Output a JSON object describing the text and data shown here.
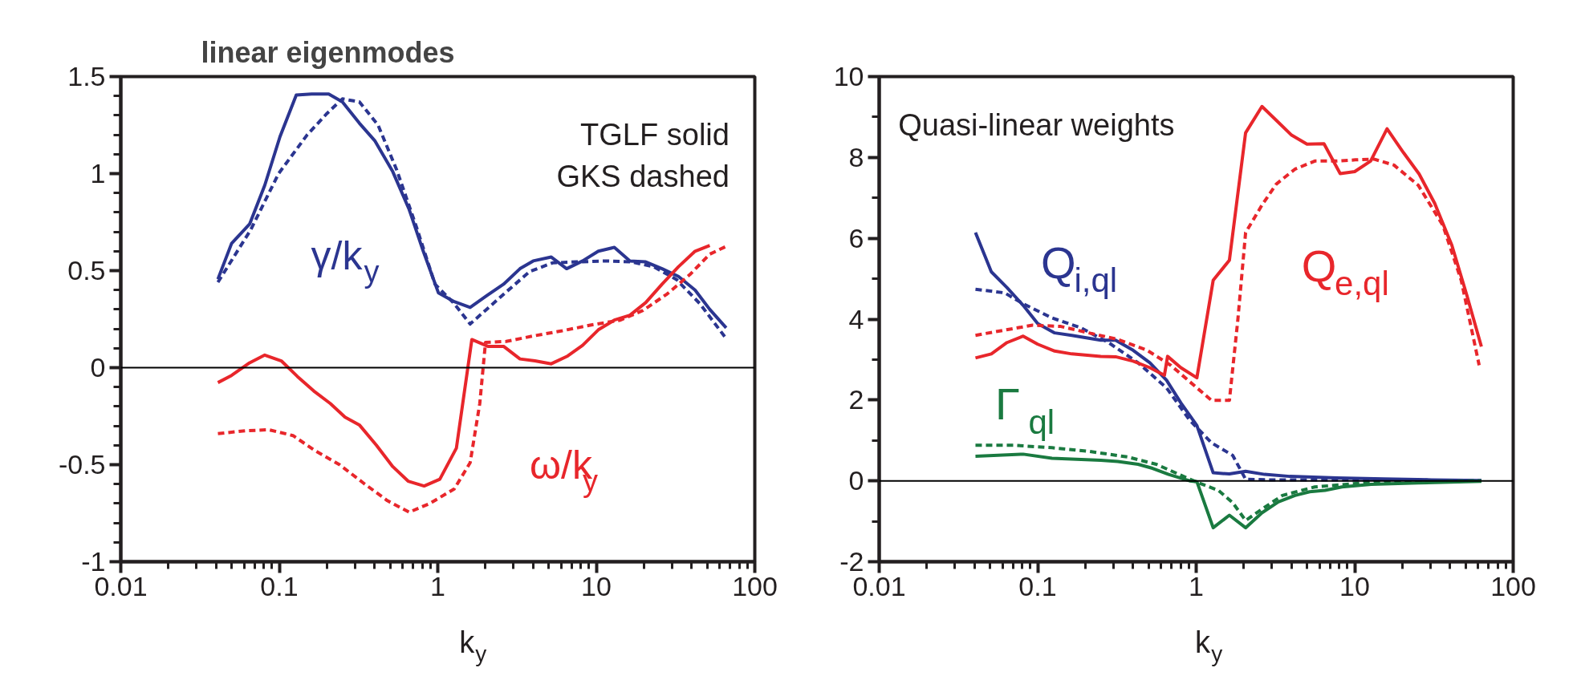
{
  "chart_data": [
    {
      "type": "line",
      "title": "linear eigenmodes",
      "xlabel": "k$_{y}$",
      "log": "x",
      "grid": false,
      "xlim": [
        0.01,
        100
      ],
      "ylim": [
        -1,
        1.5
      ],
      "xticks": [
        0.01,
        {
          "value": 0.02,
          "label": null
        },
        {
          "value": 0.03,
          "label": null
        },
        {
          "value": 0.04,
          "label": null
        },
        {
          "value": 0.05,
          "label": null
        },
        {
          "value": 0.06,
          "label": null
        },
        {
          "value": 0.07,
          "label": null
        },
        {
          "value": 0.08,
          "label": null
        },
        {
          "value": 0.09,
          "label": null
        },
        0.1,
        {
          "value": 0.2,
          "label": null
        },
        {
          "value": 0.3,
          "label": null
        },
        {
          "value": 0.4,
          "label": null
        },
        {
          "value": 0.5,
          "label": null
        },
        {
          "value": 0.6,
          "label": null
        },
        {
          "value": 0.7,
          "label": null
        },
        {
          "value": 0.8,
          "label": null
        },
        {
          "value": 0.9,
          "label": null
        },
        1,
        {
          "value": 2,
          "label": null
        },
        {
          "value": 3,
          "label": null
        },
        {
          "value": 4,
          "label": null
        },
        {
          "value": 5,
          "label": null
        },
        {
          "value": 6,
          "label": null
        },
        {
          "value": 7,
          "label": null
        },
        {
          "value": 8,
          "label": null
        },
        {
          "value": 9,
          "label": null
        },
        10,
        {
          "value": 20,
          "label": null
        },
        {
          "value": 30,
          "label": null
        },
        {
          "value": 40,
          "label": null
        },
        {
          "value": 50,
          "label": null
        },
        {
          "value": 60,
          "label": null
        },
        {
          "value": 70,
          "label": null
        },
        {
          "value": 80,
          "label": null
        },
        {
          "value": 90,
          "label": null
        },
        100
      ],
      "yticks": [
        -1,
        {
          "value": -0.9,
          "label": null
        },
        {
          "value": -0.8,
          "label": null
        },
        {
          "value": -0.7,
          "label": null
        },
        {
          "value": -0.6,
          "label": null
        },
        -0.5,
        {
          "value": -0.4,
          "label": null
        },
        {
          "value": -0.3,
          "label": null
        },
        {
          "value": -0.2,
          "label": null
        },
        {
          "value": -0.1,
          "label": null
        },
        0,
        {
          "value": 0.1,
          "label": null
        },
        {
          "value": 0.2,
          "label": null
        },
        {
          "value": 0.3,
          "label": null
        },
        {
          "value": 0.4,
          "label": null
        },
        0.5,
        {
          "value": 0.6,
          "label": null
        },
        {
          "value": 0.7,
          "label": null
        },
        {
          "value": 0.8,
          "label": null
        },
        {
          "value": 0.9,
          "label": null
        },
        1,
        {
          "value": 1.1,
          "label": null
        },
        {
          "value": 1.2,
          "label": null
        },
        {
          "value": 1.3,
          "label": null
        },
        {
          "value": 1.4,
          "label": null
        },
        1.5
      ],
      "ref_lines": [
        {
          "axis": "y",
          "value": 0,
          "color": "#000000"
        }
      ],
      "annotations": [
        "TGLF solid\nGKS dashed",
        "γ/k$_{y}$",
        "ω/k$_{y}$"
      ],
      "series": [
        {
          "color": "#2b3590",
          "line_style": "solid",
          "x": [
            0.041,
            0.05,
            0.065,
            0.081,
            0.101,
            0.128,
            0.16,
            0.205,
            0.25,
            0.32,
            0.4,
            0.52,
            0.66,
            0.81,
            1.01,
            1.27,
            1.6,
            2.03,
            2.6,
            3.3,
            4.0,
            5.2,
            6.5,
            8.2,
            10.3,
            13.0,
            16.3,
            20.5,
            26,
            33,
            42,
            52,
            66
          ],
          "values": [
            0.456,
            0.64,
            0.74,
            0.94,
            1.19,
            1.405,
            1.41,
            1.41,
            1.37,
            1.26,
            1.17,
            1.01,
            0.815,
            0.6,
            0.385,
            0.34,
            0.31,
            0.37,
            0.43,
            0.51,
            0.55,
            0.57,
            0.51,
            0.55,
            0.6,
            0.62,
            0.55,
            0.545,
            0.51,
            0.47,
            0.4,
            0.3,
            0.205
          ]
        },
        {
          "color": "#2b3590",
          "line_style": "dashed",
          "x": [
            0.041,
            0.066,
            0.099,
            0.15,
            0.2,
            0.25,
            0.32,
            0.42,
            0.55,
            0.73,
            0.96,
            1.27,
            1.6,
            2.03,
            2.7,
            3.8,
            5.3,
            7.5,
            11.7,
            16.7,
            23,
            32,
            45,
            66
          ],
          "values": [
            0.44,
            0.71,
            1.0,
            1.2,
            1.31,
            1.385,
            1.37,
            1.25,
            1.02,
            0.73,
            0.43,
            0.33,
            0.225,
            0.3,
            0.39,
            0.495,
            0.54,
            0.545,
            0.55,
            0.545,
            0.52,
            0.455,
            0.33,
            0.15
          ]
        },
        {
          "color": "#e8262b",
          "line_style": "solid",
          "x": [
            0.041,
            0.05,
            0.065,
            0.081,
            0.103,
            0.13,
            0.165,
            0.21,
            0.26,
            0.32,
            0.41,
            0.52,
            0.65,
            0.82,
            1.03,
            1.31,
            1.64,
            2.07,
            2.6,
            3.3,
            4.1,
            5.2,
            6.6,
            8.2,
            10.3,
            13.0,
            16.3,
            20.5,
            26,
            33,
            42,
            52
          ],
          "values": [
            -0.077,
            -0.04,
            0.025,
            0.065,
            0.035,
            -0.045,
            -0.12,
            -0.185,
            -0.255,
            -0.295,
            -0.4,
            -0.51,
            -0.585,
            -0.61,
            -0.575,
            -0.415,
            0.145,
            0.11,
            0.11,
            0.045,
            0.035,
            0.02,
            0.06,
            0.115,
            0.195,
            0.245,
            0.27,
            0.335,
            0.43,
            0.52,
            0.6,
            0.63
          ]
        },
        {
          "color": "#e8262b",
          "line_style": "dashed",
          "x": [
            0.041,
            0.061,
            0.086,
            0.122,
            0.17,
            0.24,
            0.34,
            0.48,
            0.66,
            0.89,
            1.27,
            1.6,
            1.84,
            2.0,
            2.7,
            4.1,
            6.1,
            9.3,
            14.2,
            19.7,
            28,
            39,
            52,
            66
          ],
          "values": [
            -0.34,
            -0.325,
            -0.32,
            -0.35,
            -0.43,
            -0.5,
            -0.595,
            -0.685,
            -0.745,
            -0.7,
            -0.625,
            -0.49,
            -0.185,
            0.13,
            0.135,
            0.165,
            0.19,
            0.22,
            0.245,
            0.295,
            0.38,
            0.48,
            0.585,
            0.625
          ]
        }
      ]
    },
    {
      "type": "line",
      "xlabel": "k$_{y}$",
      "log": "x",
      "grid": false,
      "xlim": [
        0.01,
        100
      ],
      "ylim": [
        -2,
        10
      ],
      "xticks": [
        0.01,
        {
          "value": 0.02,
          "label": null
        },
        {
          "value": 0.03,
          "label": null
        },
        {
          "value": 0.04,
          "label": null
        },
        {
          "value": 0.05,
          "label": null
        },
        {
          "value": 0.06,
          "label": null
        },
        {
          "value": 0.07,
          "label": null
        },
        {
          "value": 0.08,
          "label": null
        },
        {
          "value": 0.09,
          "label": null
        },
        0.1,
        {
          "value": 0.2,
          "label": null
        },
        {
          "value": 0.3,
          "label": null
        },
        {
          "value": 0.4,
          "label": null
        },
        {
          "value": 0.5,
          "label": null
        },
        {
          "value": 0.6,
          "label": null
        },
        {
          "value": 0.7,
          "label": null
        },
        {
          "value": 0.8,
          "label": null
        },
        {
          "value": 0.9,
          "label": null
        },
        1,
        {
          "value": 2,
          "label": null
        },
        {
          "value": 3,
          "label": null
        },
        {
          "value": 4,
          "label": null
        },
        {
          "value": 5,
          "label": null
        },
        {
          "value": 6,
          "label": null
        },
        {
          "value": 7,
          "label": null
        },
        {
          "value": 8,
          "label": null
        },
        {
          "value": 9,
          "label": null
        },
        10,
        {
          "value": 20,
          "label": null
        },
        {
          "value": 30,
          "label": null
        },
        {
          "value": 40,
          "label": null
        },
        {
          "value": 50,
          "label": null
        },
        {
          "value": 60,
          "label": null
        },
        {
          "value": 70,
          "label": null
        },
        {
          "value": 80,
          "label": null
        },
        {
          "value": 90,
          "label": null
        },
        100
      ],
      "yticks": [
        -2,
        {
          "value": -1,
          "label": null
        },
        0,
        {
          "value": 1,
          "label": null
        },
        2,
        {
          "value": 3,
          "label": null
        },
        4,
        {
          "value": 5,
          "label": null
        },
        6,
        {
          "value": 7,
          "label": null
        },
        8,
        {
          "value": 9,
          "label": null
        },
        10
      ],
      "ref_lines": [
        {
          "axis": "y",
          "value": 0,
          "color": "#000000"
        }
      ],
      "annotations": [
        "Quasi-linear weights",
        "Q$_{i,ql}$",
        "Q$_{e,ql}$",
        "Γ$_{ql}$"
      ],
      "series": [
        {
          "color": "#2b3590",
          "line_style": "solid",
          "x": [
            0.0405,
            0.051,
            0.064,
            0.081,
            0.1,
            0.128,
            0.164,
            0.25,
            0.31,
            0.4,
            0.51,
            0.65,
            0.8,
            1.01,
            1.28,
            1.62,
            2.05,
            2.7,
            3.9,
            7.7,
            15.3,
            30.6,
            63
          ],
          "values": [
            6.14,
            5.17,
            4.78,
            4.34,
            3.89,
            3.66,
            3.6,
            3.48,
            3.48,
            3.23,
            2.92,
            2.49,
            1.93,
            1.37,
            0.2,
            0.17,
            0.235,
            0.16,
            0.11,
            0.075,
            0.05,
            0.025,
            0.01
          ]
        },
        {
          "color": "#2b3590",
          "line_style": "dashed",
          "x": [
            0.0405,
            0.062,
            0.081,
            0.123,
            0.186,
            0.28,
            0.43,
            0.65,
            0.91,
            1.25,
            1.7,
            2.05,
            2.9,
            7.7,
            63
          ],
          "values": [
            4.74,
            4.65,
            4.38,
            4.03,
            3.79,
            3.42,
            2.92,
            2.3,
            1.5,
            0.94,
            0.63,
            0.04,
            0.025,
            0.025,
            0.01
          ]
        },
        {
          "color": "#e8262b",
          "line_style": "solid",
          "x": [
            0.0405,
            0.051,
            0.064,
            0.081,
            0.1,
            0.128,
            0.164,
            0.25,
            0.31,
            0.4,
            0.51,
            0.63,
            0.66,
            0.8,
            1.01,
            1.28,
            1.62,
            2.05,
            2.6,
            3.2,
            4.0,
            5.0,
            6.4,
            8.1,
            10.0,
            12.6,
            16.0,
            20.3,
            25.5,
            32,
            41,
            51,
            63
          ],
          "values": [
            3.04,
            3.14,
            3.42,
            3.58,
            3.38,
            3.21,
            3.14,
            3.08,
            3.07,
            2.96,
            2.8,
            2.61,
            3.08,
            2.8,
            2.55,
            4.96,
            5.46,
            8.61,
            9.26,
            8.92,
            8.55,
            8.33,
            8.34,
            7.6,
            7.65,
            7.91,
            8.71,
            8.12,
            7.59,
            6.86,
            5.83,
            4.59,
            3.32
          ]
        },
        {
          "color": "#e8262b",
          "line_style": "dashed",
          "x": [
            0.0405,
            0.062,
            0.093,
            0.14,
            0.21,
            0.32,
            0.49,
            0.69,
            1.01,
            1.25,
            1.62,
            1.83,
            2.05,
            2.6,
            3.2,
            4.2,
            5.6,
            7.7,
            10.1,
            13.2,
            17.7,
            25.2,
            36,
            47,
            61
          ],
          "values": [
            3.6,
            3.73,
            3.85,
            3.82,
            3.66,
            3.5,
            3.23,
            2.86,
            2.3,
            1.99,
            1.99,
            3.97,
            6.14,
            6.82,
            7.34,
            7.71,
            7.91,
            7.91,
            7.94,
            7.96,
            7.81,
            7.31,
            6.32,
            4.96,
            2.86
          ]
        },
        {
          "color": "#1a7a40",
          "line_style": "solid",
          "x": [
            0.0405,
            0.081,
            0.123,
            0.25,
            0.32,
            0.43,
            0.53,
            0.67,
            0.91,
            1.01,
            1.28,
            1.62,
            2.05,
            2.6,
            3.3,
            4.2,
            5.2,
            6.5,
            8.3,
            12.7,
            25.2,
            63
          ],
          "values": [
            0.61,
            0.66,
            0.56,
            0.51,
            0.48,
            0.41,
            0.31,
            0.16,
            0.0,
            -0.02,
            -1.16,
            -0.85,
            -1.16,
            -0.79,
            -0.52,
            -0.36,
            -0.27,
            -0.235,
            -0.15,
            -0.087,
            -0.05,
            -0.012
          ]
        },
        {
          "color": "#1a7a40",
          "line_style": "dashed",
          "x": [
            0.0405,
            0.071,
            0.123,
            0.21,
            0.37,
            0.56,
            0.8,
            1.05,
            1.38,
            1.7,
            2.05,
            2.6,
            3.5,
            5.6,
            11.5,
            63
          ],
          "values": [
            0.88,
            0.88,
            0.82,
            0.73,
            0.59,
            0.41,
            0.14,
            -0.06,
            -0.235,
            -0.54,
            -0.98,
            -0.7,
            -0.36,
            -0.15,
            -0.05,
            0.0
          ]
        }
      ]
    }
  ]
}
